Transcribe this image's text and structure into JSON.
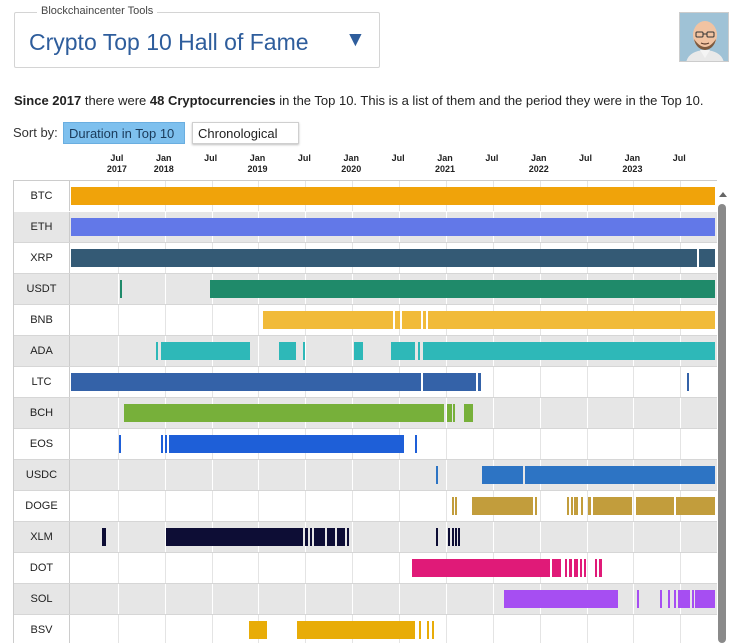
{
  "header": {
    "legend": "Blockchaincenter Tools",
    "selected_tool": "Crypto Top 10 Hall of Fame",
    "dropdown_arrow": "▼",
    "avatar": "avatar-icon"
  },
  "intro": {
    "part1": "Since 2017",
    "part2": " there were ",
    "part3": "48 Cryptocurrencies",
    "part4": " in the Top 10. This is a list of them and the period they were in the Top 10."
  },
  "sort": {
    "label": "Sort by:",
    "options": [
      "Duration in Top 10",
      "Chronological"
    ],
    "active": "Duration in Top 10"
  },
  "axis_ticks": [
    {
      "month": "Jul",
      "year": "2017",
      "t": 2017.5
    },
    {
      "month": "Jan",
      "year": "2018",
      "t": 2018.0
    },
    {
      "month": "Jul",
      "year": "",
      "t": 2018.5
    },
    {
      "month": "Jan",
      "year": "2019",
      "t": 2019.0
    },
    {
      "month": "Jul",
      "year": "",
      "t": 2019.5
    },
    {
      "month": "Jan",
      "year": "2020",
      "t": 2020.0
    },
    {
      "month": "Jul",
      "year": "",
      "t": 2020.5
    },
    {
      "month": "Jan",
      "year": "2021",
      "t": 2021.0
    },
    {
      "month": "Jul",
      "year": "",
      "t": 2021.5
    },
    {
      "month": "Jan",
      "year": "2022",
      "t": 2022.0
    },
    {
      "month": "Jul",
      "year": "",
      "t": 2022.5
    },
    {
      "month": "Jan",
      "year": "2023",
      "t": 2023.0
    },
    {
      "month": "Jul",
      "year": "",
      "t": 2023.5
    }
  ],
  "time_range": [
    2017.0,
    2023.87
  ],
  "rows": [
    {
      "name": "BTC",
      "color": "#f0a30a",
      "periods": [
        [
          2017.0,
          2023.87
        ]
      ]
    },
    {
      "name": "ETH",
      "color": "#6278e8",
      "periods": [
        [
          2017.0,
          2023.87
        ]
      ]
    },
    {
      "name": "XRP",
      "color": "#345a75",
      "periods": [
        [
          2017.0,
          2023.68
        ],
        [
          2023.7,
          2023.87
        ]
      ]
    },
    {
      "name": "USDT",
      "color": "#1f8a6a",
      "periods": [
        [
          2017.52,
          2017.54
        ],
        [
          2018.48,
          2023.87
        ]
      ]
    },
    {
      "name": "BNB",
      "color": "#f1bb3a",
      "periods": [
        [
          2019.05,
          2020.44
        ],
        [
          2020.46,
          2020.51
        ],
        [
          2020.53,
          2020.73
        ],
        [
          2020.75,
          2020.79
        ],
        [
          2020.81,
          2023.87
        ]
      ]
    },
    {
      "name": "ADA",
      "color": "#2eb8b8",
      "periods": [
        [
          2017.91,
          2017.93
        ],
        [
          2017.96,
          2018.91
        ],
        [
          2019.22,
          2019.4
        ],
        [
          2019.47,
          2019.48
        ],
        [
          2020.02,
          2020.11
        ],
        [
          2020.41,
          2020.67
        ],
        [
          2020.7,
          2020.72
        ],
        [
          2020.76,
          2023.87
        ]
      ]
    },
    {
      "name": "LTC",
      "color": "#3462a8",
      "periods": [
        [
          2017.0,
          2020.73
        ],
        [
          2020.75,
          2021.32
        ],
        [
          2021.34,
          2021.37
        ],
        [
          2023.57,
          2023.58
        ]
      ]
    },
    {
      "name": "BCH",
      "color": "#77b03a",
      "periods": [
        [
          2017.57,
          2020.98
        ],
        [
          2021.01,
          2021.06
        ],
        [
          2021.08,
          2021.1
        ],
        [
          2021.19,
          2021.29
        ]
      ]
    },
    {
      "name": "EOS",
      "color": "#1e5fd8",
      "periods": [
        [
          2017.51,
          2017.53
        ],
        [
          2017.96,
          2017.98
        ],
        [
          2018.0,
          2018.02
        ],
        [
          2018.05,
          2020.55
        ],
        [
          2020.67,
          2020.69
        ]
      ]
    },
    {
      "name": "USDC",
      "color": "#2d74c4",
      "periods": [
        [
          2020.89,
          2020.91
        ],
        [
          2021.38,
          2021.82
        ],
        [
          2021.84,
          2023.87
        ]
      ]
    },
    {
      "name": "DOGE",
      "color": "#c29d3c",
      "periods": [
        [
          2021.06,
          2021.09
        ],
        [
          2021.1,
          2021.12
        ],
        [
          2021.28,
          2021.93
        ],
        [
          2021.95,
          2021.97
        ],
        [
          2022.29,
          2022.31
        ],
        [
          2022.33,
          2022.36
        ],
        [
          2022.37,
          2022.41
        ],
        [
          2022.44,
          2022.46
        ],
        [
          2022.51,
          2022.55
        ],
        [
          2022.57,
          2022.99
        ],
        [
          2023.03,
          2023.43
        ],
        [
          2023.45,
          2023.87
        ]
      ]
    },
    {
      "name": "XLM",
      "color": "#0d0d35",
      "periods": [
        [
          2017.33,
          2017.37
        ],
        [
          2018.01,
          2019.47
        ],
        [
          2019.5,
          2019.53
        ],
        [
          2019.55,
          2019.57
        ],
        [
          2019.59,
          2019.71
        ],
        [
          2019.73,
          2019.82
        ],
        [
          2019.84,
          2019.92
        ],
        [
          2019.94,
          2019.95
        ],
        [
          2020.89,
          2020.91
        ],
        [
          2021.02,
          2021.04
        ],
        [
          2021.06,
          2021.08
        ],
        [
          2021.1,
          2021.11
        ],
        [
          2021.13,
          2021.15
        ]
      ]
    },
    {
      "name": "DOT",
      "color": "#e01a78",
      "periods": [
        [
          2020.64,
          2022.11
        ],
        [
          2022.13,
          2022.23
        ],
        [
          2022.27,
          2022.29
        ],
        [
          2022.31,
          2022.34
        ],
        [
          2022.37,
          2022.41
        ],
        [
          2022.43,
          2022.45
        ],
        [
          2022.47,
          2022.49
        ],
        [
          2022.59,
          2022.61
        ],
        [
          2022.63,
          2022.67
        ]
      ]
    },
    {
      "name": "SOL",
      "color": "#a64ef2",
      "periods": [
        [
          2021.62,
          2022.84
        ],
        [
          2023.04,
          2023.06
        ],
        [
          2023.28,
          2023.3
        ],
        [
          2023.37,
          2023.39
        ],
        [
          2023.43,
          2023.44
        ],
        [
          2023.48,
          2023.6
        ],
        [
          2023.62,
          2023.64
        ],
        [
          2023.66,
          2023.87
        ]
      ]
    },
    {
      "name": "BSV",
      "color": "#e8ac08",
      "periods": [
        [
          2018.9,
          2019.09
        ],
        [
          2019.41,
          2020.67
        ],
        [
          2020.71,
          2020.73
        ],
        [
          2020.8,
          2020.81
        ],
        [
          2020.85,
          2020.86
        ]
      ]
    }
  ]
}
